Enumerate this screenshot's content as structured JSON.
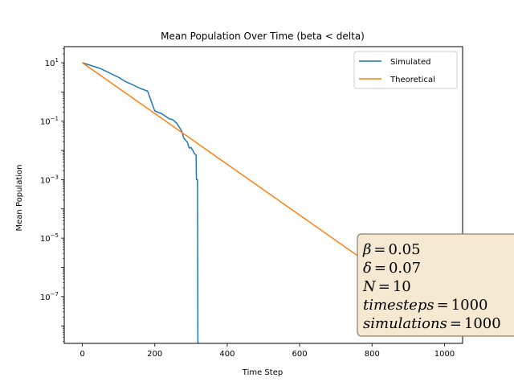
{
  "chart_data": {
    "type": "line",
    "title": "Mean Population Over Time (beta < delta)",
    "xlabel": "Time Step",
    "ylabel": "Mean Population",
    "xlim": [
      -50,
      1050
    ],
    "ylim_log10": [
      -8.6,
      1.55
    ],
    "yscale": "log",
    "grid": false,
    "legend_position": "top-right",
    "x_ticks": [
      0,
      200,
      400,
      600,
      800,
      1000
    ],
    "x_tick_labels": [
      "0",
      "200",
      "400",
      "600",
      "800",
      "1000"
    ],
    "y_ticks_log10": [
      1,
      -1,
      -3,
      -5,
      -7
    ],
    "y_tick_base": "10",
    "y_tick_exponents": [
      "1",
      "−1",
      "−3",
      "−5",
      "−7"
    ],
    "series": [
      {
        "name": "Simulated",
        "color": "#1f77b4",
        "x": [
          0,
          50,
          100,
          120,
          140,
          160,
          180,
          200,
          220,
          240,
          250,
          260,
          270,
          275,
          280,
          290,
          295,
          300,
          305,
          310,
          314,
          315,
          318,
          319,
          319.5,
          320,
          320.5
        ],
        "log10_y": [
          1.0,
          0.8,
          0.5,
          0.35,
          0.24,
          0.12,
          0.03,
          -0.65,
          -0.75,
          -0.92,
          -0.95,
          -1.06,
          -1.25,
          -1.36,
          -1.58,
          -1.72,
          -1.92,
          -1.9,
          -2.0,
          -2.12,
          -2.15,
          -3.0,
          -3.0,
          -8.5,
          -8.6,
          -8.6,
          -8.6
        ]
      },
      {
        "name": "Theoretical",
        "color": "#ff7f0e",
        "x": [
          0,
          1000
        ],
        "log10_y": [
          1.0,
          -7.686
        ]
      }
    ]
  },
  "params_box": {
    "lines": [
      {
        "name": "β",
        "value": "0.05"
      },
      {
        "name": "δ",
        "value": "0.07"
      },
      {
        "name": "N",
        "value": "10"
      },
      {
        "name": "timesteps",
        "value": "1000"
      },
      {
        "name": "simulations",
        "value": "1000"
      }
    ],
    "equals": "=",
    "background": "#f6e9d2",
    "border": "#8a7f6e"
  }
}
